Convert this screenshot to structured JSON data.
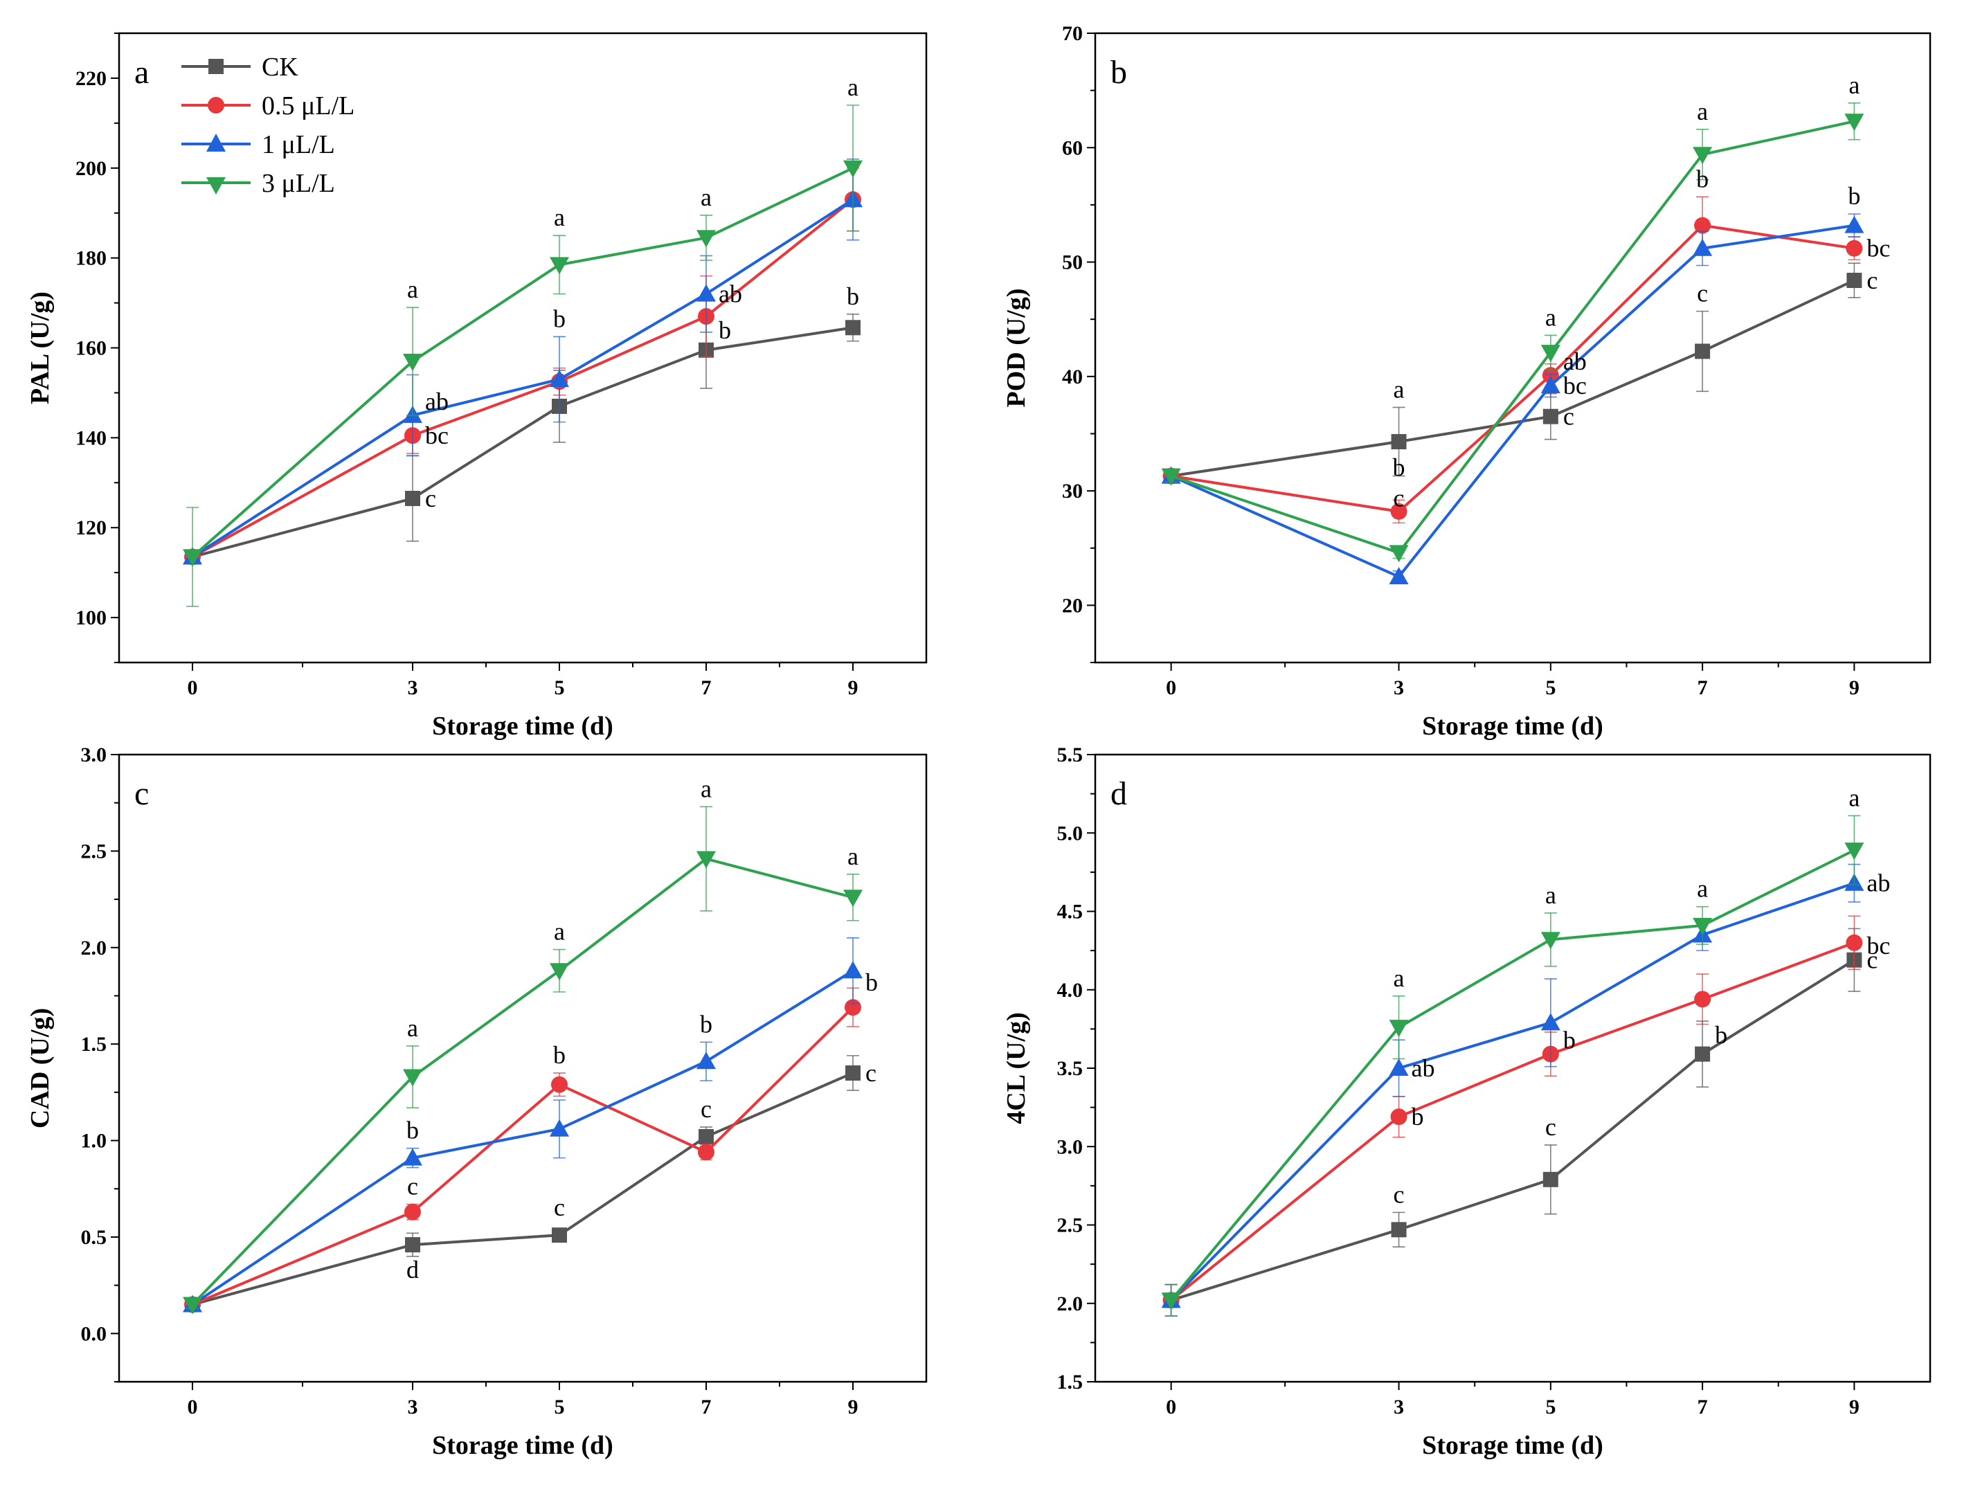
{
  "legend": [
    {
      "name": "CK",
      "color": "#555555",
      "marker": "square"
    },
    {
      "name": "0.5 μL/L",
      "color": "#e8383d",
      "marker": "circle"
    },
    {
      "name": "1 μL/L",
      "color": "#1f62d9",
      "marker": "triangle-up"
    },
    {
      "name": "3 μL/L",
      "color": "#2ea24e",
      "marker": "triangle-down"
    }
  ],
  "chart_data": [
    {
      "type": "line",
      "panel": "a",
      "ylabel": "PAL (U/g)",
      "xlabel": "Storage time (d)",
      "x": [
        0,
        3,
        5,
        7,
        9
      ],
      "xlim": [
        -1,
        10
      ],
      "ylim": [
        90,
        230
      ],
      "yticks": [
        100,
        120,
        140,
        160,
        180,
        200,
        220
      ],
      "ytick_labels": [
        "100",
        "120",
        "140",
        "160",
        "180",
        "200",
        "220"
      ],
      "series": [
        {
          "name": "CK",
          "values": [
            113.5,
            126.5,
            147,
            159.5,
            164.5
          ],
          "err": [
            0.5,
            9.5,
            8,
            8.5,
            3
          ]
        },
        {
          "name": "0.5 μL/L",
          "values": [
            113.5,
            140.5,
            152.5,
            167,
            193
          ],
          "err": [
            0.5,
            4,
            3,
            9,
            7
          ]
        },
        {
          "name": "1 μL/L",
          "values": [
            113.5,
            145,
            153,
            172,
            193
          ],
          "err": [
            0.5,
            9,
            9.5,
            8.5,
            9
          ]
        },
        {
          "name": "3 μL/L",
          "values": [
            113.5,
            157,
            178.5,
            184.5,
            200
          ],
          "err": [
            11,
            12,
            6.5,
            5,
            14
          ]
        }
      ],
      "annotations": [
        {
          "x": 3,
          "y": 126.5,
          "text": "c",
          "pos": "right"
        },
        {
          "x": 3,
          "y": 140.5,
          "text": "bc",
          "pos": "right"
        },
        {
          "x": 3,
          "y": 145,
          "text": "ab",
          "pos": "right-up"
        },
        {
          "x": 3,
          "y": 169,
          "text": "a",
          "pos": "above"
        },
        {
          "x": 5,
          "y": 162.5,
          "text": "b",
          "pos": "above"
        },
        {
          "x": 5,
          "y": 185,
          "text": "a",
          "pos": "above"
        },
        {
          "x": 7,
          "y": 167,
          "text": "b",
          "pos": "right-down"
        },
        {
          "x": 7,
          "y": 172,
          "text": "ab",
          "pos": "right"
        },
        {
          "x": 7,
          "y": 189.5,
          "text": "a",
          "pos": "above"
        },
        {
          "x": 9,
          "y": 167.5,
          "text": "b",
          "pos": "above"
        },
        {
          "x": 9,
          "y": 214,
          "text": "a",
          "pos": "above"
        }
      ]
    },
    {
      "type": "line",
      "panel": "b",
      "ylabel": "POD (U/g)",
      "xlabel": "Storage time (d)",
      "x": [
        0,
        3,
        5,
        7,
        9
      ],
      "xlim": [
        -1,
        10
      ],
      "ylim": [
        15,
        70
      ],
      "yticks": [
        20,
        30,
        40,
        50,
        60,
        70
      ],
      "ytick_labels": [
        "20",
        "30",
        "40",
        "50",
        "60",
        "70"
      ],
      "series": [
        {
          "name": "CK",
          "values": [
            31.3,
            34.3,
            36.5,
            42.2,
            48.4
          ],
          "err": [
            0.5,
            3,
            2,
            3.5,
            1.5
          ]
        },
        {
          "name": "0.5 μL/L",
          "values": [
            31.3,
            28.2,
            40.1,
            53.2,
            51.2
          ],
          "err": [
            0.5,
            1,
            1,
            2.5,
            1
          ]
        },
        {
          "name": "1 μL/L",
          "values": [
            31.3,
            22.5,
            39.2,
            51.2,
            53.2
          ],
          "err": [
            0.5,
            0.5,
            1,
            1.5,
            1
          ]
        },
        {
          "name": "3 μL/L",
          "values": [
            31.3,
            24.6,
            42.1,
            59.4,
            62.3
          ],
          "err": [
            0.5,
            0.5,
            1.5,
            2.2,
            1.6
          ]
        }
      ],
      "annotations": [
        {
          "x": 3,
          "y": 37.3,
          "text": "a",
          "pos": "above"
        },
        {
          "x": 3,
          "y": 30.5,
          "text": "b",
          "pos": "above"
        },
        {
          "x": 3,
          "y": 27.8,
          "text": "c",
          "pos": "above"
        },
        {
          "x": 5,
          "y": 36.5,
          "text": "c",
          "pos": "right"
        },
        {
          "x": 5,
          "y": 39.2,
          "text": "bc",
          "pos": "right"
        },
        {
          "x": 5,
          "y": 40.1,
          "text": "ab",
          "pos": "right-up"
        },
        {
          "x": 5,
          "y": 43.6,
          "text": "a",
          "pos": "above"
        },
        {
          "x": 7,
          "y": 45.7,
          "text": "c",
          "pos": "above"
        },
        {
          "x": 7,
          "y": 55.7,
          "text": "b",
          "pos": "above"
        },
        {
          "x": 7,
          "y": 61.6,
          "text": "a",
          "pos": "above"
        },
        {
          "x": 9,
          "y": 48.4,
          "text": "c",
          "pos": "right"
        },
        {
          "x": 9,
          "y": 51.2,
          "text": "bc",
          "pos": "right"
        },
        {
          "x": 9,
          "y": 54.2,
          "text": "b",
          "pos": "above"
        },
        {
          "x": 9,
          "y": 63.9,
          "text": "a",
          "pos": "above"
        }
      ]
    },
    {
      "type": "line",
      "panel": "c",
      "ylabel": "CAD (U/g)",
      "xlabel": "Storage time (d)",
      "x": [
        0,
        3,
        5,
        7,
        9
      ],
      "xlim": [
        -1,
        10
      ],
      "ylim": [
        -0.25,
        3.0
      ],
      "yticks": [
        0,
        0.5,
        1.0,
        1.5,
        2.0,
        2.5,
        3.0
      ],
      "ytick_labels": [
        "0.0",
        "0.5",
        "1.0",
        "1.5",
        "2.0",
        "2.5",
        "3.0"
      ],
      "series": [
        {
          "name": "CK",
          "values": [
            0.15,
            0.46,
            0.51,
            1.02,
            1.35
          ],
          "err": [
            0.02,
            0.06,
            0.03,
            0.05,
            0.09
          ]
        },
        {
          "name": "0.5 μL/L",
          "values": [
            0.15,
            0.63,
            1.29,
            0.94,
            1.69
          ],
          "err": [
            0.02,
            0.04,
            0.06,
            0.04,
            0.1
          ]
        },
        {
          "name": "1 μL/L",
          "values": [
            0.15,
            0.91,
            1.06,
            1.41,
            1.88
          ],
          "err": [
            0.02,
            0.05,
            0.15,
            0.1,
            0.17
          ]
        },
        {
          "name": "3 μL/L",
          "values": [
            0.15,
            1.33,
            1.88,
            2.46,
            2.26
          ],
          "err": [
            0.02,
            0.16,
            0.11,
            0.27,
            0.12
          ]
        }
      ],
      "annotations": [
        {
          "x": 3,
          "y": 0.46,
          "text": "d",
          "pos": "below"
        },
        {
          "x": 3,
          "y": 0.67,
          "text": "c",
          "pos": "above"
        },
        {
          "x": 3,
          "y": 0.96,
          "text": "b",
          "pos": "above"
        },
        {
          "x": 3,
          "y": 1.49,
          "text": "a",
          "pos": "above"
        },
        {
          "x": 5,
          "y": 0.56,
          "text": "c",
          "pos": "above"
        },
        {
          "x": 5,
          "y": 1.35,
          "text": "b",
          "pos": "above"
        },
        {
          "x": 5,
          "y": 1.99,
          "text": "a",
          "pos": "above"
        },
        {
          "x": 7,
          "y": 1.07,
          "text": "c",
          "pos": "above"
        },
        {
          "x": 7,
          "y": 1.51,
          "text": "b",
          "pos": "above"
        },
        {
          "x": 7,
          "y": 2.73,
          "text": "a",
          "pos": "above"
        },
        {
          "x": 9,
          "y": 1.35,
          "text": "c",
          "pos": "right"
        },
        {
          "x": 9,
          "y": 1.82,
          "text": "b",
          "pos": "right"
        },
        {
          "x": 9,
          "y": 2.38,
          "text": "a",
          "pos": "above"
        }
      ]
    },
    {
      "type": "line",
      "panel": "d",
      "ylabel": "4CL (U/g)",
      "xlabel": "Storage time (d)",
      "x": [
        0,
        3,
        5,
        7,
        9
      ],
      "xlim": [
        -1,
        10
      ],
      "ylim": [
        1.5,
        5.5
      ],
      "yticks": [
        1.5,
        2.0,
        2.5,
        3.0,
        3.5,
        4.0,
        4.5,
        5.0,
        5.5
      ],
      "ytick_labels": [
        "1.5",
        "2.0",
        "2.5",
        "3.0",
        "3.5",
        "4.0",
        "4.5",
        "5.0",
        "5.5"
      ],
      "series": [
        {
          "name": "CK",
          "values": [
            2.02,
            2.47,
            2.79,
            3.59,
            4.19
          ],
          "err": [
            0.1,
            0.11,
            0.22,
            0.21,
            0.2
          ]
        },
        {
          "name": "0.5 μL/L",
          "values": [
            2.02,
            3.19,
            3.59,
            3.94,
            4.3
          ],
          "err": [
            0.1,
            0.13,
            0.14,
            0.16,
            0.17
          ]
        },
        {
          "name": "1 μL/L",
          "values": [
            2.02,
            3.5,
            3.79,
            4.35,
            4.68
          ],
          "err": [
            0.1,
            0.18,
            0.28,
            0.1,
            0.12
          ]
        },
        {
          "name": "3 μL/L",
          "values": [
            2.02,
            3.76,
            4.32,
            4.41,
            4.89
          ],
          "err": [
            0.1,
            0.2,
            0.17,
            0.12,
            0.22
          ]
        }
      ],
      "annotations": [
        {
          "x": 3,
          "y": 2.58,
          "text": "c",
          "pos": "above"
        },
        {
          "x": 3,
          "y": 3.19,
          "text": "b",
          "pos": "right"
        },
        {
          "x": 3,
          "y": 3.5,
          "text": "ab",
          "pos": "right"
        },
        {
          "x": 3,
          "y": 3.96,
          "text": "a",
          "pos": "above"
        },
        {
          "x": 5,
          "y": 3.01,
          "text": "c",
          "pos": "above"
        },
        {
          "x": 5,
          "y": 3.59,
          "text": "b",
          "pos": "right-up"
        },
        {
          "x": 5,
          "y": 4.49,
          "text": "a",
          "pos": "above"
        },
        {
          "x": 7,
          "y": 3.8,
          "text": "b",
          "pos": "right-down"
        },
        {
          "x": 7,
          "y": 4.53,
          "text": "a",
          "pos": "above"
        },
        {
          "x": 9,
          "y": 4.19,
          "text": "c",
          "pos": "right"
        },
        {
          "x": 9,
          "y": 4.37,
          "text": "bc",
          "pos": "right-down"
        },
        {
          "x": 9,
          "y": 4.68,
          "text": "ab",
          "pos": "right"
        },
        {
          "x": 9,
          "y": 5.11,
          "text": "a",
          "pos": "above"
        }
      ]
    }
  ]
}
